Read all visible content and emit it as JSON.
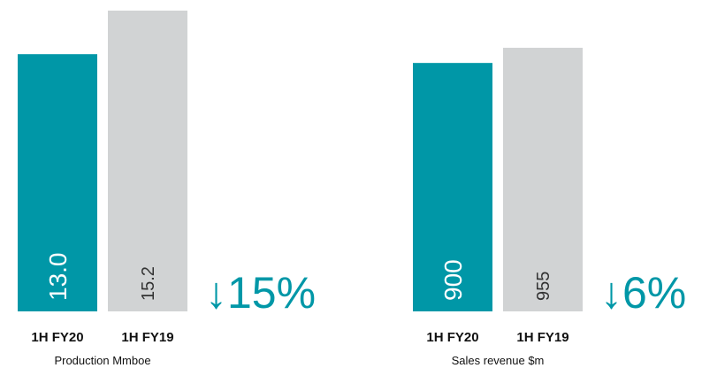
{
  "chart_data": [
    {
      "type": "bar",
      "categories": [
        "1H FY20",
        "1H FY19"
      ],
      "values": [
        13.0,
        15.2
      ],
      "value_labels": [
        "13.0",
        "15.2"
      ],
      "colors": [
        "#0097a7",
        "#d1d3d4"
      ],
      "annotation": "↓15%",
      "xlabel": "Production Mmboe"
    },
    {
      "type": "bar",
      "categories": [
        "1H FY20",
        "1H FY19"
      ],
      "values": [
        900,
        955
      ],
      "value_labels": [
        "900",
        "955"
      ],
      "colors": [
        "#0097a7",
        "#d1d3d4"
      ],
      "annotation": "↓6%",
      "xlabel": "Sales revenue $m"
    }
  ]
}
